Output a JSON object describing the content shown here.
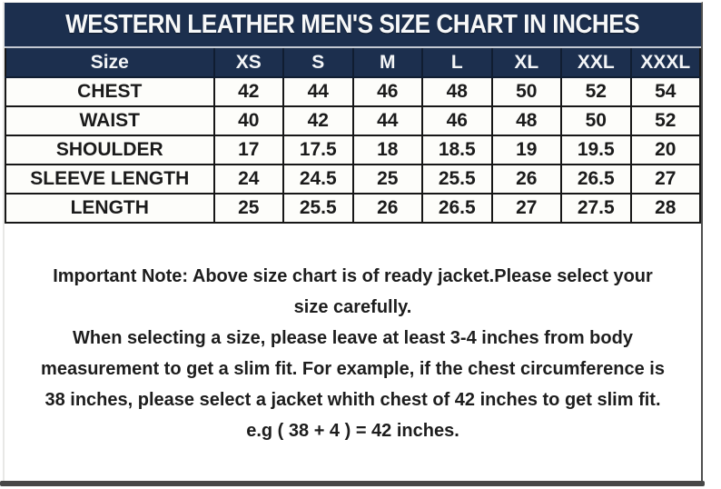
{
  "title": "WESTERN LEATHER MEN'S SIZE CHART IN INCHES",
  "chart_data": {
    "type": "table",
    "title": "WESTERN LEATHER MEN'S SIZE CHART IN INCHES",
    "unit": "inches",
    "columns": [
      "Size",
      "XS",
      "S",
      "M",
      "L",
      "XL",
      "XXL",
      "XXXL"
    ],
    "rows": [
      {
        "label": "CHEST",
        "values": [
          "42",
          "44",
          "46",
          "48",
          "50",
          "52",
          "54"
        ]
      },
      {
        "label": "WAIST",
        "values": [
          "40",
          "42",
          "44",
          "46",
          "48",
          "50",
          "52"
        ]
      },
      {
        "label": "SHOULDER",
        "values": [
          "17",
          "17.5",
          "18",
          "18.5",
          "19",
          "19.5",
          "20"
        ]
      },
      {
        "label": "SLEEVE LENGTH",
        "values": [
          "24",
          "24.5",
          "25",
          "25.5",
          "26",
          "26.5",
          "27"
        ]
      },
      {
        "label": "LENGTH",
        "values": [
          "25",
          "25.5",
          "26",
          "26.5",
          "27",
          "27.5",
          "28"
        ]
      }
    ]
  },
  "note": {
    "lines": [
      "Important Note: Above size chart is of ready jacket.Please select your",
      "size carefully.",
      "When selecting a size, please leave at least 3-4 inches from body",
      "measurement to get a slim fit. For example, if the chest circumference is",
      "38 inches, please select a jacket whith chest of 42 inches to get slim fit.",
      "e.g ( 38 + 4 ) = 42 inches."
    ]
  },
  "colors": {
    "header_bg": "#1c2f4e",
    "header_text": "#f3f5f7",
    "cell_bg": "#fdfdfa",
    "cell_text": "#1b1b1b",
    "grid_border": "#171717",
    "bottom_bar": "#474747"
  }
}
